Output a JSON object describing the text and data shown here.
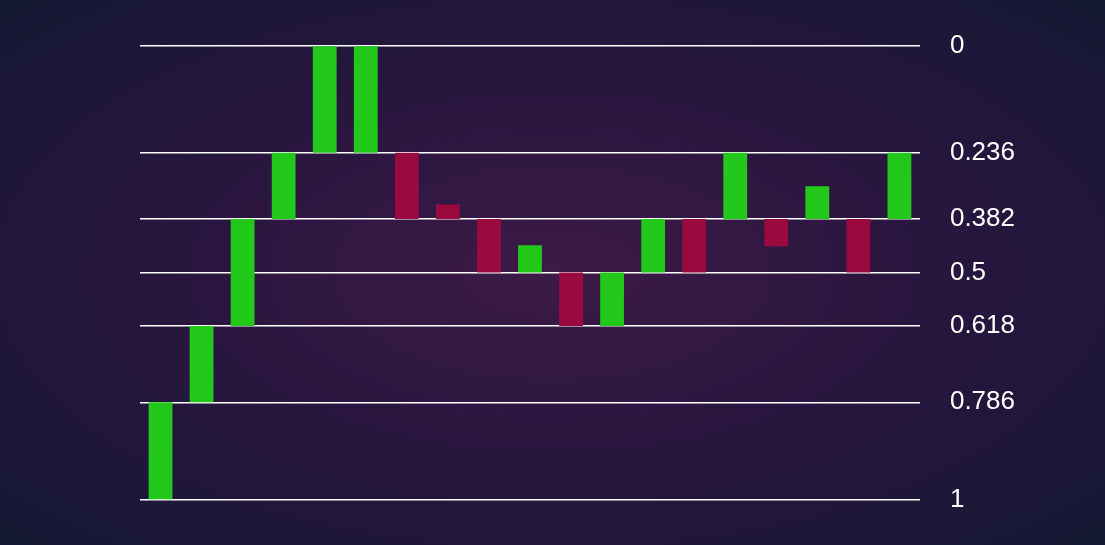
{
  "chart_data": {
    "type": "bar",
    "categories": [
      null,
      null,
      null,
      null,
      null,
      null,
      null,
      null,
      null,
      null,
      null,
      null,
      null,
      null,
      null,
      null,
      null,
      null,
      null
    ],
    "base": [
      0.786,
      0.618,
      0.382,
      0.236,
      0,
      0,
      0.236,
      0.35,
      0.382,
      0.44,
      0.5,
      0.5,
      0.382,
      0.382,
      0.236,
      0.382,
      0.31,
      0.382,
      0.236
    ],
    "values": [
      0.214,
      0.168,
      0.236,
      0.146,
      0.236,
      0.236,
      0.146,
      0.032,
      0.118,
      0.06,
      0.118,
      0.118,
      0.118,
      0.118,
      0.146,
      0.06,
      0.072,
      0.118,
      0.146
    ],
    "colors": [
      "#22c81a",
      "#22c81a",
      "#22c81a",
      "#22c81a",
      "#22c81a",
      "#22c81a",
      "#9a0a3e",
      "#9a0a3e",
      "#9a0a3e",
      "#22c81a",
      "#9a0a3e",
      "#22c81a",
      "#22c81a",
      "#9a0a3e",
      "#22c81a",
      "#9a0a3e",
      "#22c81a",
      "#9a0a3e",
      "#22c81a"
    ],
    "ylim": [
      1,
      0
    ],
    "yticks": [
      0,
      0.236,
      0.382,
      0.5,
      0.618,
      0.786,
      1
    ],
    "grid": "y",
    "tick_labels": "y"
  }
}
